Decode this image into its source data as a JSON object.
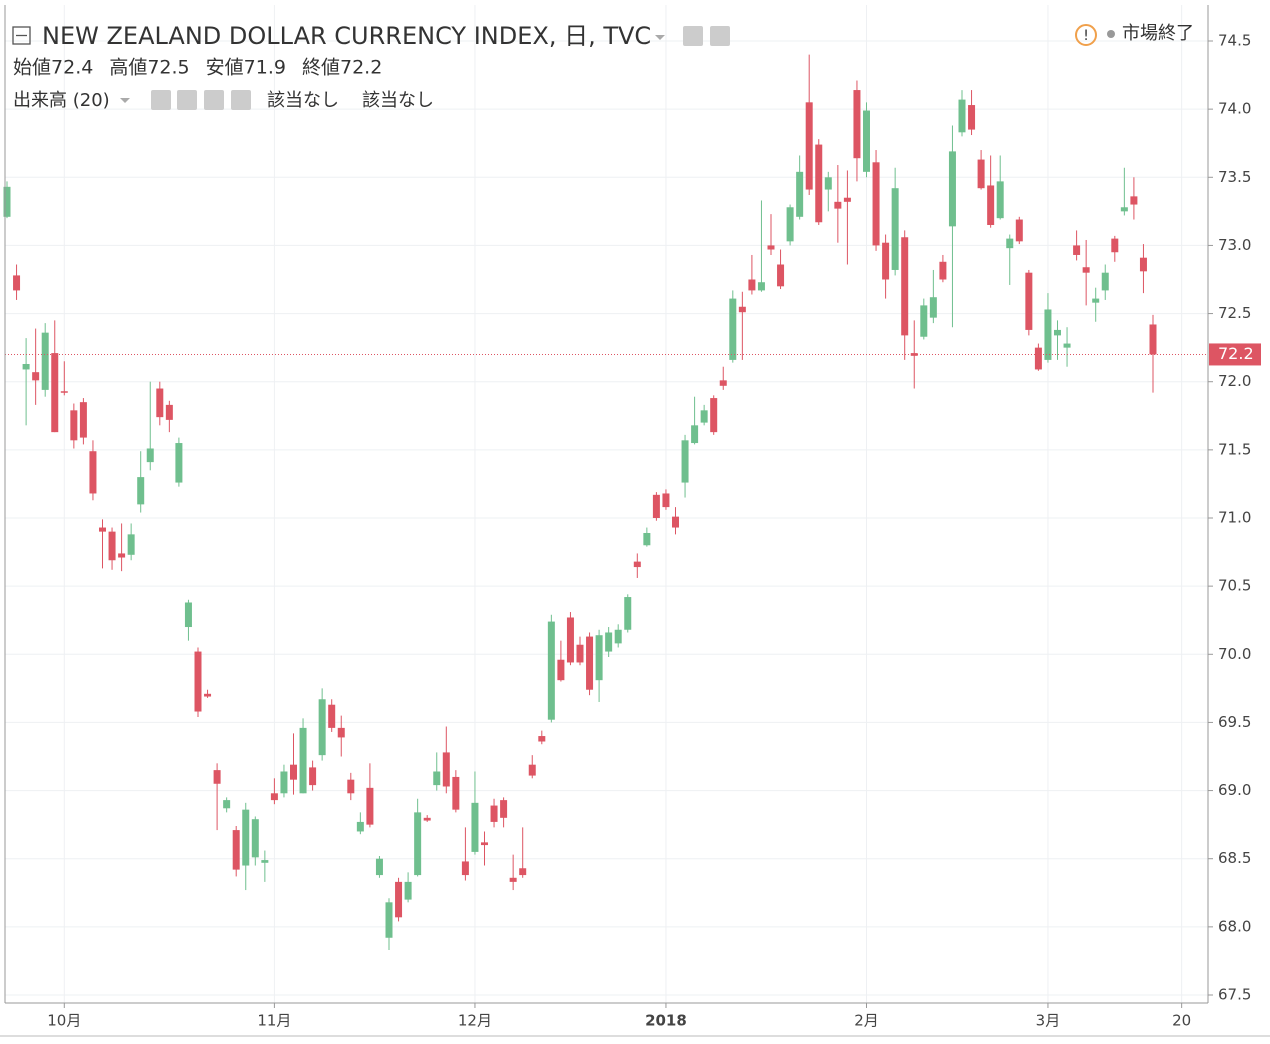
{
  "chart_data": {
    "type": "candlestick",
    "title": "NEW ZEALAND DOLLAR CURRENCY INDEX, 日, TVC",
    "status": "市場終了",
    "ohlc_legend": [
      {
        "label": "始値",
        "value": 72.4
      },
      {
        "label": "高値",
        "value": 72.5
      },
      {
        "label": "安値",
        "value": 71.9
      },
      {
        "label": "終値",
        "value": 72.2
      }
    ],
    "indicator": {
      "label": "出来高 (20)",
      "values": [
        "該当なし",
        "該当なし"
      ]
    },
    "categories": [
      null,
      null,
      null,
      null,
      null,
      null,
      "10月",
      null,
      null,
      null,
      null,
      null,
      null,
      null,
      null,
      null,
      null,
      null,
      null,
      null,
      null,
      null,
      null,
      null,
      null,
      null,
      null,
      null,
      "11月",
      null,
      null,
      null,
      null,
      null,
      null,
      null,
      null,
      null,
      null,
      null,
      null,
      null,
      null,
      null,
      null,
      null,
      null,
      null,
      null,
      "12月",
      null,
      null,
      null,
      null,
      null,
      null,
      null,
      null,
      null,
      null,
      null,
      null,
      null,
      null,
      null,
      null,
      null,
      null,
      null,
      "2018",
      null,
      null,
      null,
      null,
      null,
      null,
      null,
      null,
      null,
      null,
      null,
      null,
      null,
      null,
      null,
      null,
      null,
      null,
      null,
      null,
      "2月",
      null,
      null,
      null,
      null,
      null,
      null,
      null,
      null,
      null,
      null,
      null,
      null,
      null,
      null,
      null,
      null,
      null,
      null,
      "3月",
      null,
      null,
      null,
      null,
      null,
      null,
      null,
      null,
      null,
      null,
      null,
      null,
      null,
      "20"
    ],
    "open": [
      73.21,
      72.78,
      72.09,
      72.07,
      71.94,
      72.21,
      71.93,
      71.79,
      71.85,
      71.49,
      70.93,
      70.9,
      70.74,
      70.73,
      71.1,
      71.41,
      71.95,
      71.83,
      71.26,
      70.2,
      70.02,
      69.71,
      69.15,
      68.87,
      68.71,
      68.45,
      68.51,
      68.47,
      68.98,
      68.98,
      69.19,
      68.98,
      69.17,
      69.26,
      69.63,
      69.46,
      69.08,
      68.7,
      69.02,
      68.38,
      67.92,
      68.33,
      68.2,
      68.38,
      68.8,
      69.04,
      69.28,
      69.1,
      68.48,
      68.55,
      68.62,
      68.89,
      68.93,
      68.36,
      68.43,
      69.19,
      69.4,
      69.52,
      69.96,
      70.27,
      70.07,
      70.13,
      69.81,
      70.02,
      70.08,
      70.18,
      70.68,
      70.8,
      71.17,
      71.18,
      71.01,
      71.26,
      71.55,
      71.7,
      71.88,
      72.01,
      72.16,
      72.55,
      72.75,
      72.67,
      73.0,
      72.86,
      73.03,
      73.21,
      74.05,
      73.74,
      73.41,
      73.32,
      73.35,
      74.14,
      73.54,
      73.61,
      73.02,
      72.82,
      73.06,
      72.21,
      72.33,
      72.47,
      72.88,
      73.14,
      73.83,
      74.03,
      73.63,
      73.44,
      73.2,
      72.98,
      73.19,
      72.8,
      72.25,
      72.16,
      72.34,
      72.25,
      73.0,
      72.84,
      72.58,
      72.67,
      73.05,
      73.25,
      73.36,
      72.91,
      72.42,
      null,
      null,
      null
    ],
    "high": [
      73.47,
      72.86,
      72.32,
      72.39,
      72.43,
      72.45,
      72.15,
      71.84,
      71.88,
      71.57,
      70.99,
      70.93,
      70.96,
      70.96,
      71.49,
      72.0,
      72.0,
      71.86,
      71.59,
      70.4,
      70.05,
      69.74,
      69.2,
      68.95,
      68.74,
      68.91,
      68.81,
      68.56,
      69.09,
      69.19,
      69.42,
      69.53,
      69.22,
      69.75,
      69.67,
      69.55,
      69.13,
      68.84,
      69.2,
      68.52,
      68.21,
      68.36,
      68.4,
      68.94,
      68.82,
      69.28,
      69.47,
      69.15,
      68.73,
      69.14,
      68.7,
      68.94,
      68.95,
      68.53,
      68.73,
      69.26,
      69.44,
      70.29,
      70.1,
      70.31,
      70.13,
      70.16,
      70.18,
      70.2,
      70.22,
      70.44,
      70.74,
      70.93,
      71.19,
      71.21,
      71.08,
      71.61,
      71.89,
      71.83,
      71.9,
      72.11,
      72.67,
      72.66,
      72.93,
      73.33,
      73.23,
      72.97,
      73.3,
      73.66,
      74.4,
      73.78,
      73.54,
      73.59,
      73.55,
      74.21,
      74.05,
      73.7,
      73.08,
      73.57,
      73.11,
      72.45,
      72.61,
      72.82,
      72.93,
      73.88,
      74.14,
      74.14,
      73.7,
      73.66,
      73.66,
      73.08,
      73.21,
      72.82,
      72.28,
      72.65,
      72.45,
      72.4,
      73.11,
      73.04,
      72.69,
      72.86,
      73.07,
      73.57,
      73.5,
      73.01,
      72.49,
      null,
      null,
      null
    ],
    "low": [
      73.2,
      72.6,
      71.68,
      71.83,
      71.89,
      71.63,
      71.9,
      71.51,
      71.54,
      71.13,
      70.63,
      70.62,
      70.61,
      70.69,
      71.04,
      71.35,
      71.68,
      71.63,
      71.23,
      70.1,
      69.54,
      69.68,
      68.71,
      68.84,
      68.37,
      68.27,
      68.45,
      68.33,
      68.9,
      68.95,
      68.97,
      68.98,
      69.0,
      69.22,
      69.43,
      69.25,
      68.93,
      68.68,
      68.73,
      68.36,
      67.83,
      68.04,
      68.18,
      68.37,
      68.77,
      69.0,
      68.98,
      68.84,
      68.34,
      68.53,
      68.45,
      68.73,
      68.73,
      68.27,
      68.36,
      69.09,
      69.34,
      69.5,
      69.8,
      69.92,
      69.92,
      69.7,
      69.65,
      69.98,
      70.05,
      70.16,
      70.56,
      70.79,
      70.98,
      71.06,
      70.88,
      71.15,
      71.54,
      71.68,
      71.61,
      71.94,
      72.14,
      72.16,
      72.64,
      72.66,
      72.93,
      72.68,
      73.0,
      73.19,
      73.37,
      73.15,
      73.25,
      73.02,
      72.86,
      73.47,
      73.5,
      72.96,
      72.61,
      72.78,
      72.16,
      71.95,
      72.31,
      72.43,
      72.73,
      72.4,
      73.8,
      73.81,
      73.41,
      73.13,
      73.19,
      72.71,
      73.01,
      72.34,
      72.08,
      72.14,
      72.16,
      72.11,
      72.89,
      72.56,
      72.44,
      72.6,
      72.88,
      73.22,
      73.19,
      72.65,
      71.92,
      null,
      null,
      null
    ],
    "close": [
      73.43,
      72.67,
      72.13,
      72.01,
      72.36,
      71.63,
      71.92,
      71.57,
      71.59,
      71.18,
      70.9,
      70.69,
      70.71,
      70.88,
      71.3,
      71.51,
      71.74,
      71.72,
      71.55,
      70.38,
      69.58,
      69.69,
      69.05,
      68.93,
      68.42,
      68.86,
      68.79,
      68.49,
      68.93,
      69.14,
      69.08,
      69.46,
      69.04,
      69.67,
      69.46,
      69.39,
      68.98,
      68.77,
      68.75,
      68.5,
      68.18,
      68.07,
      68.33,
      68.84,
      68.78,
      69.14,
      69.03,
      68.86,
      68.38,
      68.91,
      68.6,
      68.77,
      68.8,
      68.33,
      68.38,
      69.11,
      69.36,
      70.24,
      69.81,
      69.94,
      69.94,
      69.74,
      70.14,
      70.16,
      70.18,
      70.42,
      70.64,
      70.89,
      71.0,
      71.08,
      70.93,
      71.57,
      71.68,
      71.79,
      71.63,
      71.97,
      72.61,
      72.51,
      72.67,
      72.73,
      72.97,
      72.7,
      73.28,
      73.54,
      73.41,
      73.17,
      73.5,
      73.27,
      73.32,
      73.64,
      73.99,
      73.0,
      72.75,
      73.42,
      72.34,
      72.19,
      72.56,
      72.62,
      72.75,
      73.69,
      74.07,
      73.85,
      73.42,
      73.15,
      73.47,
      73.05,
      73.03,
      72.38,
      72.09,
      72.53,
      72.38,
      72.28,
      72.93,
      72.8,
      72.61,
      72.8,
      72.95,
      73.28,
      73.3,
      72.81,
      72.2,
      null,
      null,
      null
    ],
    "up_color": "#6fbf8e",
    "down_color": "#dd5563",
    "last_price": 72.2,
    "ylim": [
      67.5,
      74.5
    ],
    "yticks": [
      67.5,
      {
        "value": 68,
        "label": "68.0"
      },
      68.5,
      {
        "value": 69,
        "label": "69.0"
      },
      69.5,
      {
        "value": 70,
        "label": "70.0"
      },
      70.5,
      {
        "value": 71,
        "label": "71.0"
      },
      71.5,
      {
        "value": 72,
        "label": "72.0"
      },
      72.5,
      {
        "value": 73,
        "label": "73.0"
      },
      73.5,
      {
        "value": 74,
        "label": "74.0"
      },
      74.5
    ],
    "grid": true
  }
}
